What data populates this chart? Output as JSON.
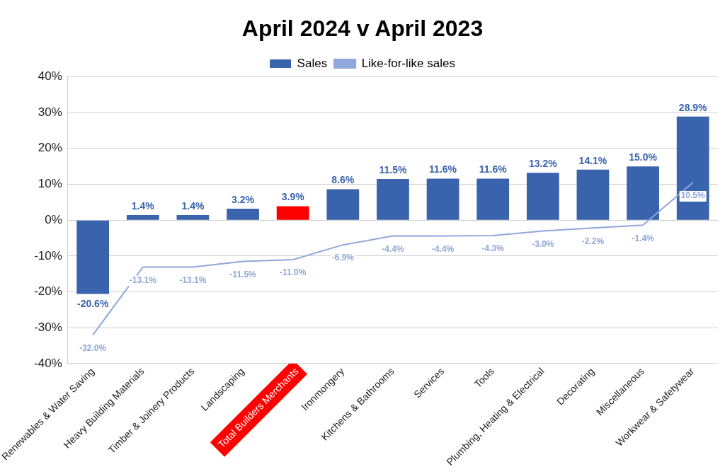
{
  "chart_data": {
    "type": "bar",
    "title": "April 2024 v April 2023",
    "categories": [
      "Renewables & Water Saving",
      "Heavy Building Materials",
      "Timber & Joinery Products",
      "Landscaping",
      "Total Builders Merchants",
      "Ironmongery",
      "Kitchens & Bathrooms",
      "Services",
      "Tools",
      "Plumbing, Heating & Electrical",
      "Decorating",
      "Miscellaneous",
      "Workwear & Safetywear"
    ],
    "series": [
      {
        "name": "Sales",
        "color": "#3a63ad",
        "colors": [
          "#3a63ad",
          "#3a63ad",
          "#3a63ad",
          "#3a63ad",
          "#ff0000",
          "#3a63ad",
          "#3a63ad",
          "#3a63ad",
          "#3a63ad",
          "#3a63ad",
          "#3a63ad",
          "#3a63ad",
          "#3a63ad"
        ],
        "values": [
          -20.6,
          1.4,
          1.4,
          3.2,
          3.9,
          8.6,
          11.5,
          11.6,
          11.6,
          13.2,
          14.1,
          15.0,
          28.9
        ],
        "value_labels": [
          "-20.6%",
          "1.4%",
          "1.4%",
          "3.2%",
          "3.9%",
          "8.6%",
          "11.5%",
          "11.6%",
          "11.6%",
          "13.2%",
          "14.1%",
          "15.0%",
          "28.9%"
        ]
      },
      {
        "name": "Like-for-like sales",
        "type": "line",
        "color": "#8fa7db",
        "values": [
          -32.0,
          -13.1,
          -13.1,
          -11.5,
          -11.0,
          -6.9,
          -4.4,
          -4.4,
          -4.3,
          -3.0,
          -2.2,
          -1.4,
          10.5
        ],
        "value_labels": [
          "-32.0%",
          "-13.1%",
          "-13.1%",
          "-11.5%",
          "-11.0%",
          "-6.9%",
          "-4.4%",
          "-4.4%",
          "-4.3%",
          "-3.0%",
          "-2.2%",
          "-1.4%",
          "10.5%"
        ]
      }
    ],
    "ylim": [
      -40,
      40
    ],
    "yticks": [
      {
        "value": -40,
        "label": "-40%"
      },
      {
        "value": -30,
        "label": "-30%"
      },
      {
        "value": -20,
        "label": "-20%"
      },
      {
        "value": -10,
        "label": "-10%"
      },
      {
        "value": 0,
        "label": "0%"
      },
      {
        "value": 10,
        "label": "10%"
      },
      {
        "value": 20,
        "label": "20%"
      },
      {
        "value": 30,
        "label": "30%"
      },
      {
        "value": 40,
        "label": "40%"
      }
    ],
    "grid": "y",
    "legend": "top",
    "marker": "none",
    "line_style": "solid"
  }
}
